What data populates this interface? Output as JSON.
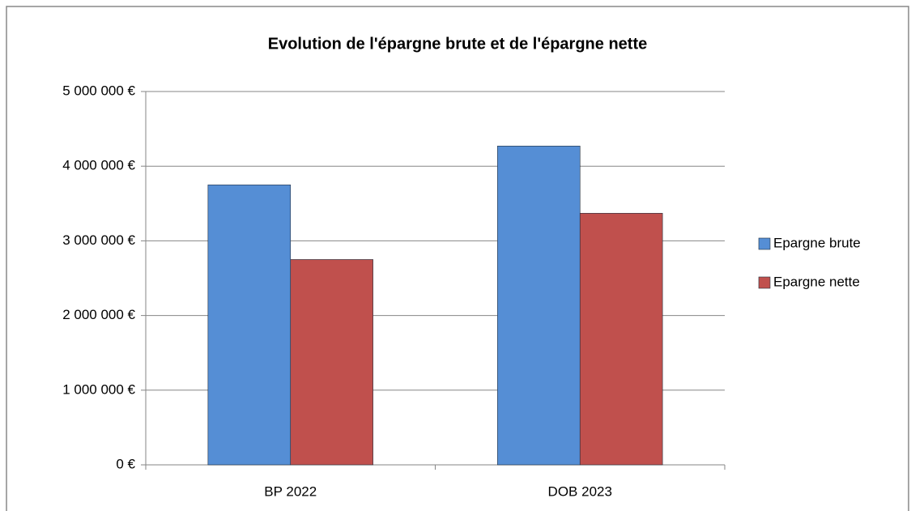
{
  "chart_data": {
    "type": "bar",
    "title": "Evolution de l'épargne brute et de l'épargne nette",
    "categories": [
      "BP 2022",
      "DOB 2023"
    ],
    "series": [
      {
        "name": "Epargne brute",
        "color": "#558ed5",
        "values": [
          3750000,
          4270000
        ]
      },
      {
        "name": "Epargne nette",
        "color": "#c0504d",
        "values": [
          2750000,
          3370000
        ]
      }
    ],
    "ylim": [
      0,
      5000000
    ],
    "yticks": [
      {
        "value": 0,
        "label": "0 €"
      },
      {
        "value": 1000000,
        "label": "1 000 000 €"
      },
      {
        "value": 2000000,
        "label": "2 000 000 €"
      },
      {
        "value": 3000000,
        "label": "3 000 000 €"
      },
      {
        "value": 4000000,
        "label": "4 000 000 €"
      },
      {
        "value": 5000000,
        "label": "5 000 000 €"
      }
    ],
    "grid": true,
    "legend": "right"
  }
}
